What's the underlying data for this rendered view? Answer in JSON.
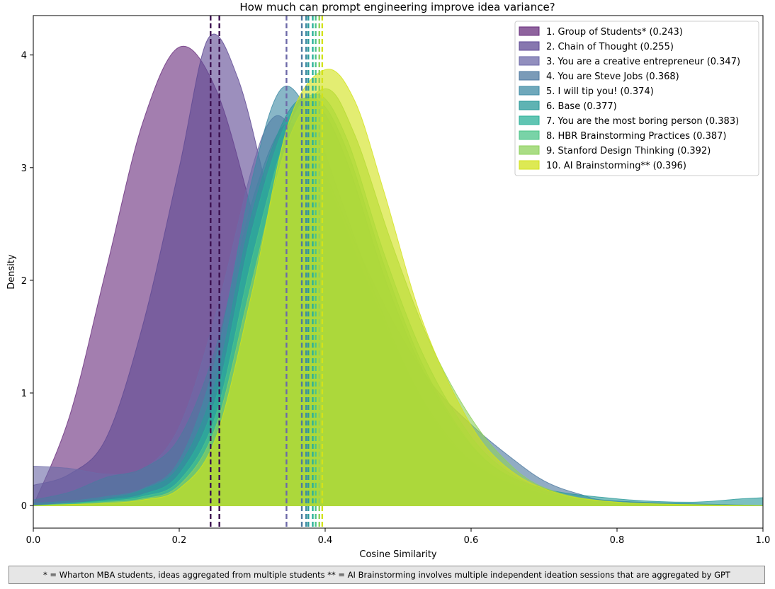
{
  "chart_data": {
    "type": "area",
    "subtype": "kde-density",
    "title": "How much can prompt engineering improve idea variance?",
    "xlabel": "Cosine Similarity",
    "ylabel": "Density",
    "xlim": [
      0.0,
      1.0
    ],
    "ylim": [
      -0.2,
      4.35
    ],
    "xticks": [
      0.0,
      0.2,
      0.4,
      0.6,
      0.8,
      1.0
    ],
    "xtick_labels": [
      "0.0",
      "0.2",
      "0.4",
      "0.6",
      "0.8",
      "1.0"
    ],
    "yticks": [
      0,
      1,
      2,
      3,
      4
    ],
    "ytick_labels": [
      "0",
      "1",
      "2",
      "3",
      "4"
    ],
    "grid": false,
    "legend_position": "top-right",
    "series": [
      {
        "name": "1. Group of Students* (0.243)",
        "mean": 0.243,
        "color": "#6a2f7e",
        "x": [
          0.0,
          0.05,
          0.1,
          0.15,
          0.2,
          0.25,
          0.3,
          0.35,
          0.4,
          0.45,
          0.5,
          0.55,
          0.6,
          0.7,
          0.8,
          1.0
        ],
        "y": [
          0.0,
          0.8,
          2.1,
          3.4,
          4.07,
          3.7,
          2.6,
          1.3,
          0.55,
          0.22,
          0.1,
          0.05,
          0.02,
          0.01,
          0.0,
          0.0
        ]
      },
      {
        "name": "2. Chain of Thought (0.255)",
        "mean": 0.255,
        "color": "#5f4a94",
        "x": [
          0.0,
          0.05,
          0.1,
          0.15,
          0.2,
          0.24,
          0.28,
          0.32,
          0.36,
          0.4,
          0.45,
          0.5,
          0.55,
          0.6,
          0.7,
          0.8,
          1.0
        ],
        "y": [
          0.18,
          0.28,
          0.6,
          1.6,
          3.0,
          4.15,
          3.8,
          2.8,
          1.65,
          0.85,
          0.35,
          0.14,
          0.06,
          0.03,
          0.01,
          0.0,
          0.0
        ]
      },
      {
        "name": "3. You are a creative entrepreneur (0.347)",
        "mean": 0.347,
        "color": "#6e6aa8",
        "x": [
          0.0,
          0.05,
          0.1,
          0.15,
          0.2,
          0.25,
          0.3,
          0.33,
          0.36,
          0.4,
          0.45,
          0.5,
          0.55,
          0.6,
          0.7,
          0.8,
          1.0
        ],
        "y": [
          0.35,
          0.33,
          0.28,
          0.32,
          0.7,
          1.7,
          3.0,
          3.45,
          3.3,
          2.9,
          2.1,
          1.35,
          0.75,
          0.4,
          0.1,
          0.02,
          0.0
        ]
      },
      {
        "name": "4. You are Steve Jobs (0.368)",
        "mean": 0.368,
        "color": "#4e79a0",
        "x": [
          0.0,
          0.05,
          0.1,
          0.15,
          0.2,
          0.25,
          0.3,
          0.34,
          0.37,
          0.4,
          0.45,
          0.5,
          0.55,
          0.6,
          0.65,
          0.7,
          0.75,
          0.8,
          1.0
        ],
        "y": [
          0.05,
          0.12,
          0.25,
          0.33,
          0.6,
          1.4,
          2.7,
          3.35,
          3.3,
          2.95,
          2.2,
          1.55,
          1.05,
          0.72,
          0.45,
          0.22,
          0.1,
          0.04,
          0.0
        ]
      },
      {
        "name": "5. I will tip you! (0.374)",
        "mean": 0.374,
        "color": "#3f8ba4",
        "x": [
          0.0,
          0.05,
          0.1,
          0.15,
          0.2,
          0.25,
          0.3,
          0.34,
          0.38,
          0.42,
          0.47,
          0.52,
          0.57,
          0.62,
          0.7,
          0.8,
          1.0
        ],
        "y": [
          0.02,
          0.04,
          0.08,
          0.15,
          0.4,
          1.3,
          2.9,
          3.7,
          3.45,
          2.75,
          1.85,
          1.1,
          0.6,
          0.3,
          0.1,
          0.02,
          0.0
        ]
      },
      {
        "name": "6. Base (0.377)",
        "mean": 0.377,
        "color": "#2a9a9a",
        "x": [
          0.0,
          0.05,
          0.1,
          0.15,
          0.2,
          0.25,
          0.3,
          0.35,
          0.39,
          0.43,
          0.48,
          0.53,
          0.58,
          0.63,
          0.7,
          0.8,
          0.9,
          0.97,
          1.0
        ],
        "y": [
          0.0,
          0.02,
          0.06,
          0.14,
          0.35,
          1.1,
          2.6,
          3.5,
          3.55,
          3.05,
          2.05,
          1.25,
          0.7,
          0.35,
          0.15,
          0.06,
          0.03,
          0.06,
          0.07
        ]
      },
      {
        "name": "7. You are the most boring person (0.383)",
        "mean": 0.383,
        "color": "#2bb19a",
        "x": [
          0.0,
          0.05,
          0.1,
          0.15,
          0.2,
          0.25,
          0.3,
          0.35,
          0.39,
          0.43,
          0.48,
          0.53,
          0.58,
          0.63,
          0.7,
          0.8,
          1.0
        ],
        "y": [
          0.0,
          0.02,
          0.05,
          0.1,
          0.28,
          0.95,
          2.45,
          3.45,
          3.6,
          3.15,
          2.15,
          1.3,
          0.72,
          0.35,
          0.12,
          0.03,
          0.0
        ]
      },
      {
        "name": "8. HBR Brainstorming Practices (0.387)",
        "mean": 0.387,
        "color": "#4cc48a",
        "x": [
          0.0,
          0.05,
          0.1,
          0.15,
          0.2,
          0.25,
          0.3,
          0.35,
          0.39,
          0.43,
          0.48,
          0.53,
          0.58,
          0.63,
          0.7,
          0.8,
          1.0
        ],
        "y": [
          0.0,
          0.02,
          0.04,
          0.08,
          0.22,
          0.8,
          2.2,
          3.35,
          3.65,
          3.25,
          2.25,
          1.4,
          0.8,
          0.4,
          0.14,
          0.03,
          0.0
        ]
      },
      {
        "name": "9. Stanford Design Thinking (0.392)",
        "mean": 0.392,
        "color": "#8ed15c",
        "x": [
          0.0,
          0.05,
          0.1,
          0.15,
          0.2,
          0.25,
          0.3,
          0.35,
          0.4,
          0.44,
          0.49,
          0.54,
          0.59,
          0.64,
          0.7,
          0.8,
          1.0
        ],
        "y": [
          0.0,
          0.01,
          0.03,
          0.06,
          0.18,
          0.7,
          2.0,
          3.25,
          3.7,
          3.3,
          2.35,
          1.5,
          0.88,
          0.45,
          0.16,
          0.03,
          0.0
        ]
      },
      {
        "name": "10. AI Brainstorming** (0.396)",
        "mean": 0.396,
        "color": "#d2e21b",
        "x": [
          0.0,
          0.05,
          0.1,
          0.15,
          0.2,
          0.25,
          0.3,
          0.35,
          0.4,
          0.44,
          0.48,
          0.53,
          0.58,
          0.63,
          0.7,
          0.8,
          1.0
        ],
        "y": [
          0.0,
          0.01,
          0.02,
          0.05,
          0.15,
          0.6,
          1.9,
          3.4,
          3.87,
          3.6,
          2.8,
          1.7,
          0.95,
          0.45,
          0.15,
          0.03,
          0.0
        ]
      }
    ]
  },
  "footnote": "* = Wharton MBA students, ideas aggregated from multiple students ** = AI Brainstorming involves multiple independent ideation sessions that are aggregated by GPT"
}
